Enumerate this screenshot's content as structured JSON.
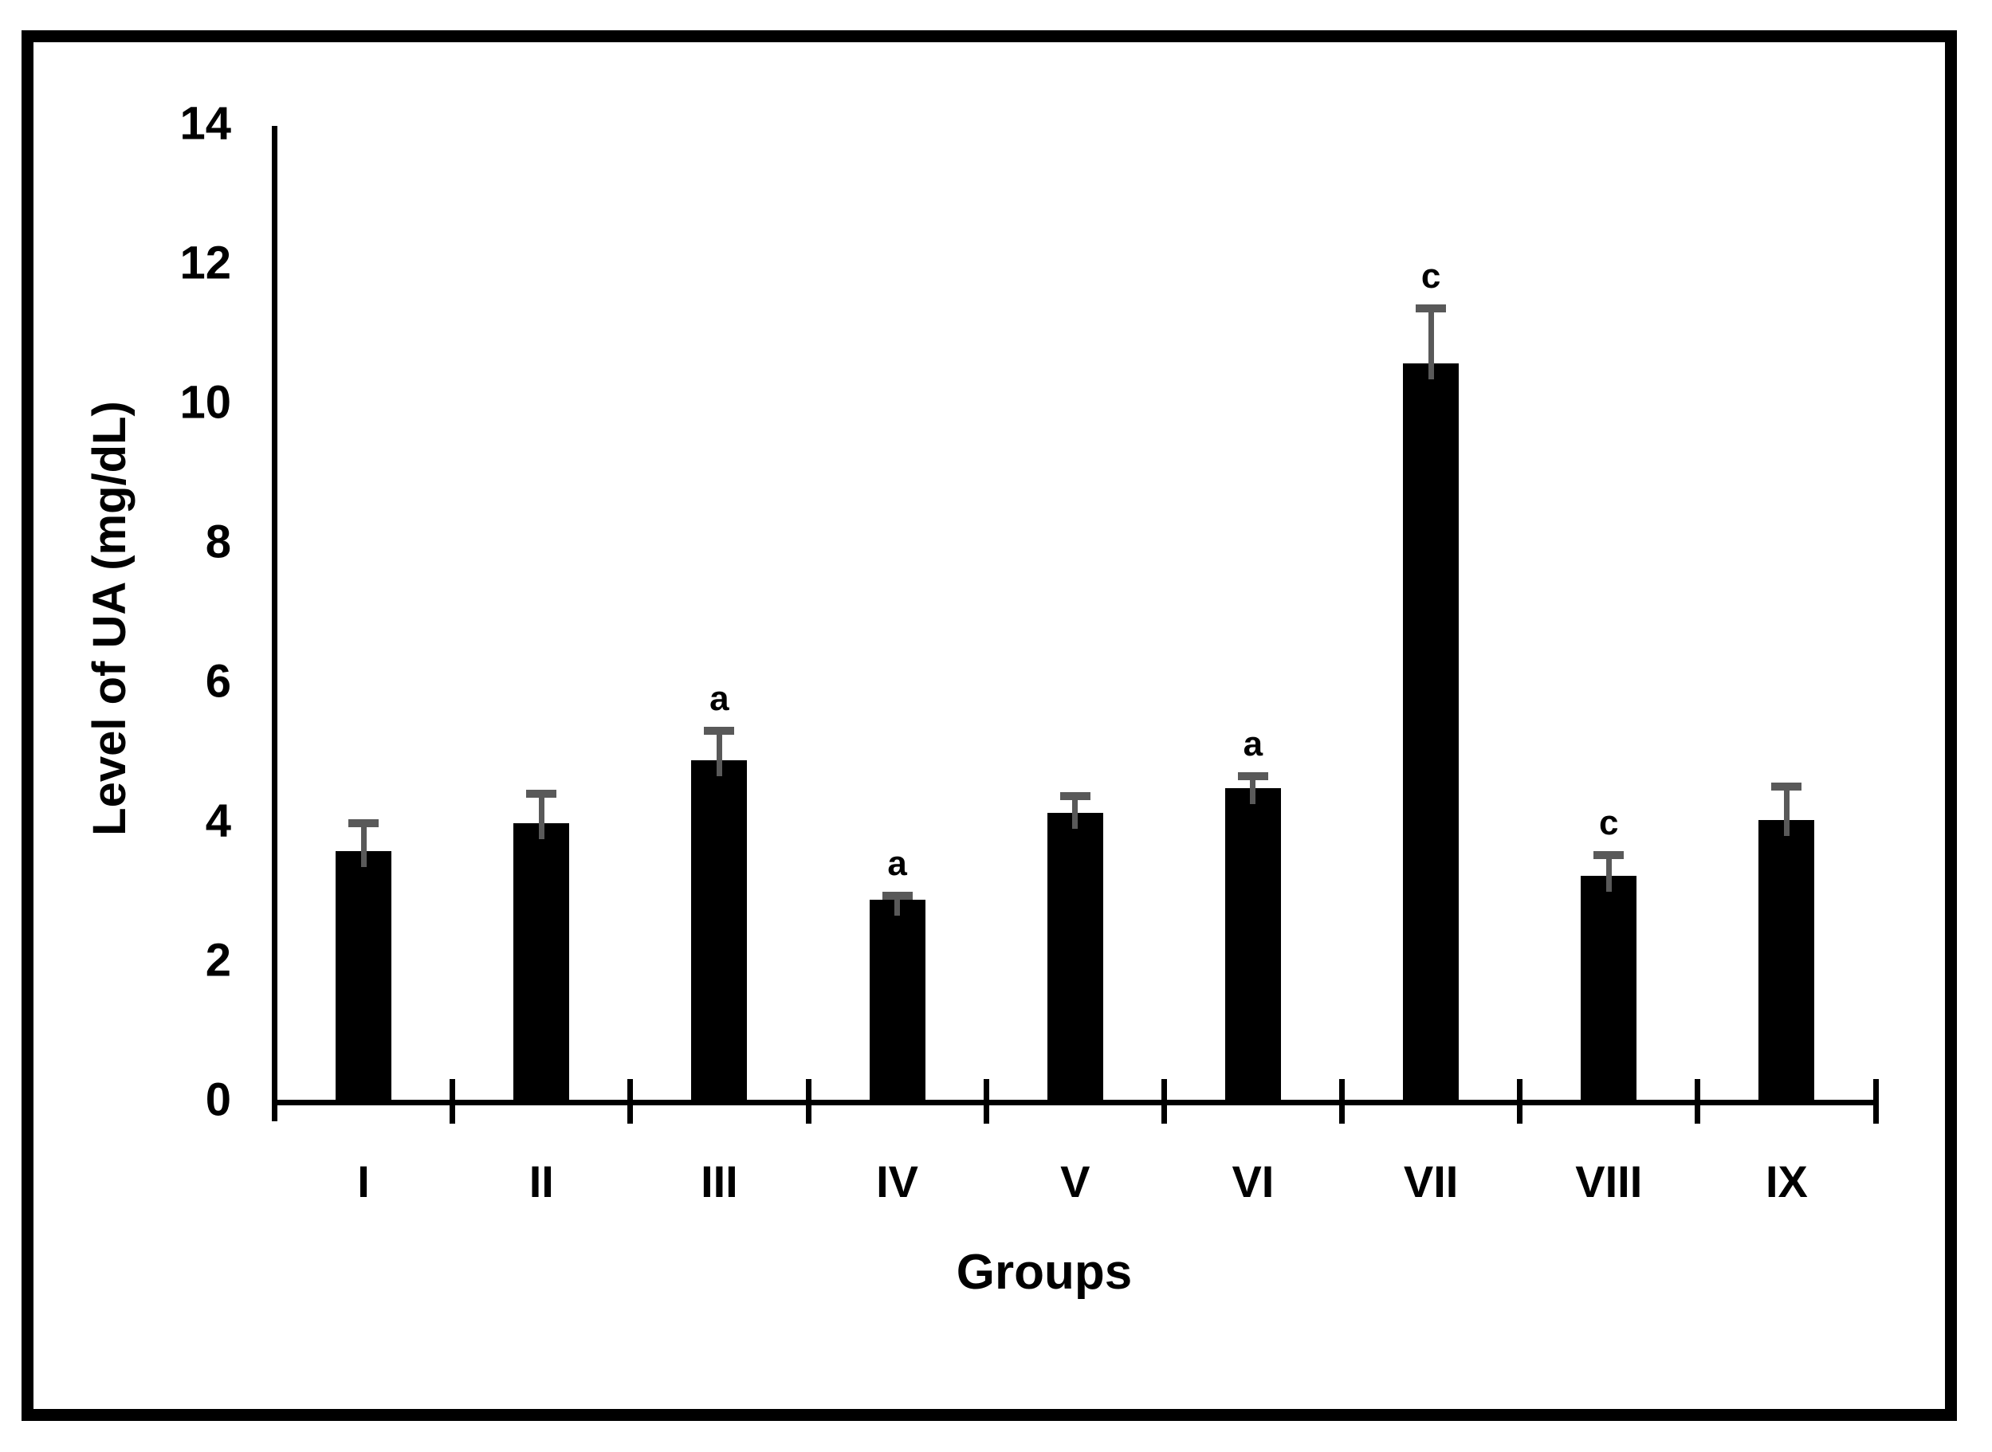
{
  "figure": {
    "background_color": "#ffffff",
    "border_color": "#000000"
  },
  "chart_data": {
    "type": "bar",
    "title": "",
    "xlabel": "Groups",
    "ylabel": "Level of UA (mg/dL)",
    "categories": [
      "I",
      "II",
      "III",
      "IV",
      "V",
      "VI",
      "VII",
      "VIII",
      "IX"
    ],
    "values": [
      3.6,
      4.0,
      4.9,
      2.9,
      4.15,
      4.5,
      10.6,
      3.25,
      4.05
    ],
    "errors": [
      0.4,
      0.42,
      0.43,
      0.06,
      0.24,
      0.18,
      0.78,
      0.29,
      0.48
    ],
    "annotations": [
      "",
      "",
      "a",
      "a",
      "",
      "a",
      "c",
      "c",
      ""
    ],
    "ylim": [
      0,
      14
    ],
    "yticks": [
      0,
      2,
      4,
      6,
      8,
      10,
      12,
      14
    ],
    "bar_color": "#000000",
    "error_bar_color": "#595959",
    "grid": false,
    "legend_position": "none"
  }
}
